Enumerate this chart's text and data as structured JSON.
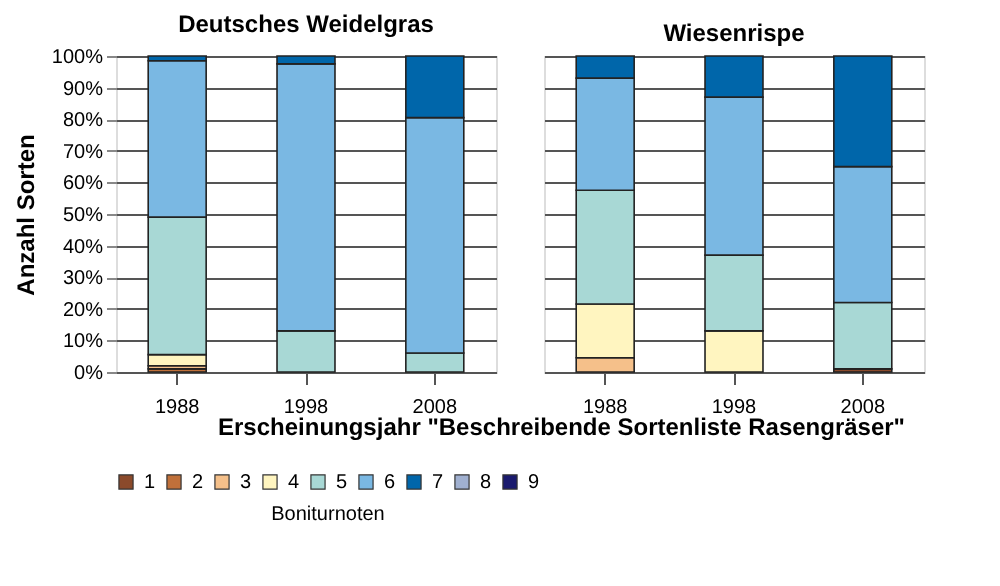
{
  "chart_data": [
    {
      "type": "bar",
      "stacked": true,
      "title": "Deutsches Weidelgras",
      "ylabel": "Anzahl Sorten",
      "xlabel": "Erscheinungsjahr \"Beschreibende Sortenliste Rasengräser\"",
      "legend_title": "Boniturnoten",
      "legend": "bottom",
      "grid": "y",
      "categories": [
        "1988",
        "1998",
        "2008"
      ],
      "ylim": [
        0,
        100
      ],
      "yticks": [
        {
          "value": 0,
          "label": "0%"
        },
        {
          "value": 10,
          "label": "10%"
        },
        {
          "value": 20,
          "label": "20%"
        },
        {
          "value": 30,
          "label": "30%"
        },
        {
          "value": 40,
          "label": "40%"
        },
        {
          "value": 50,
          "label": "50%"
        },
        {
          "value": 60,
          "label": "60%"
        },
        {
          "value": 70,
          "label": "70%"
        },
        {
          "value": 80,
          "label": "80%"
        },
        {
          "value": 90,
          "label": "90%"
        },
        {
          "value": 100,
          "label": "100%"
        }
      ],
      "series": [
        {
          "name": "1",
          "color": "#8b4a2b",
          "values": [
            null,
            null,
            null
          ]
        },
        {
          "name": "2",
          "color": "#c0703a",
          "values": [
            1,
            null,
            null
          ]
        },
        {
          "name": "3",
          "color": "#f5c08a",
          "values": [
            1,
            null,
            null
          ]
        },
        {
          "name": "4",
          "color": "#fff5c0",
          "values": [
            3.5,
            null,
            null
          ]
        },
        {
          "name": "5",
          "color": "#a8d8d5",
          "values": [
            43.5,
            13,
            6
          ]
        },
        {
          "name": "6",
          "color": "#7ab8e3",
          "values": [
            49.5,
            84.5,
            74.5
          ]
        },
        {
          "name": "7",
          "color": "#0066aa",
          "values": [
            1.5,
            2.5,
            19.5
          ]
        },
        {
          "name": "8",
          "color": "#a0b0d0",
          "values": [
            null,
            null,
            null
          ]
        },
        {
          "name": "9",
          "color": "#1a1a6e",
          "values": [
            null,
            null,
            null
          ]
        }
      ]
    },
    {
      "type": "bar",
      "stacked": true,
      "title": "Wiesenrispe",
      "grid": "y",
      "tick_labels": "x",
      "categories": [
        "1988",
        "1998",
        "2008"
      ],
      "ylim": [
        0,
        100
      ],
      "yticks": [
        0,
        10,
        20,
        30,
        40,
        50,
        60,
        70,
        80,
        90,
        100
      ],
      "series": [
        {
          "color": "#8b4a2b",
          "values": [
            null,
            null,
            1
          ]
        },
        {
          "color": "#c0703a",
          "values": [
            null,
            null,
            null
          ]
        },
        {
          "color": "#f5c08a",
          "values": [
            4.5,
            null,
            null
          ]
        },
        {
          "color": "#fff5c0",
          "values": [
            17,
            13,
            null
          ]
        },
        {
          "color": "#a8d8d5",
          "values": [
            36,
            24,
            21
          ]
        },
        {
          "color": "#7ab8e3",
          "values": [
            35.5,
            50,
            43
          ]
        },
        {
          "color": "#0066aa",
          "values": [
            7,
            13,
            35
          ]
        },
        {
          "color": "#a0b0d0",
          "values": [
            null,
            null,
            null
          ]
        },
        {
          "color": "#1a1a6e",
          "values": [
            null,
            null,
            null
          ]
        }
      ]
    }
  ]
}
